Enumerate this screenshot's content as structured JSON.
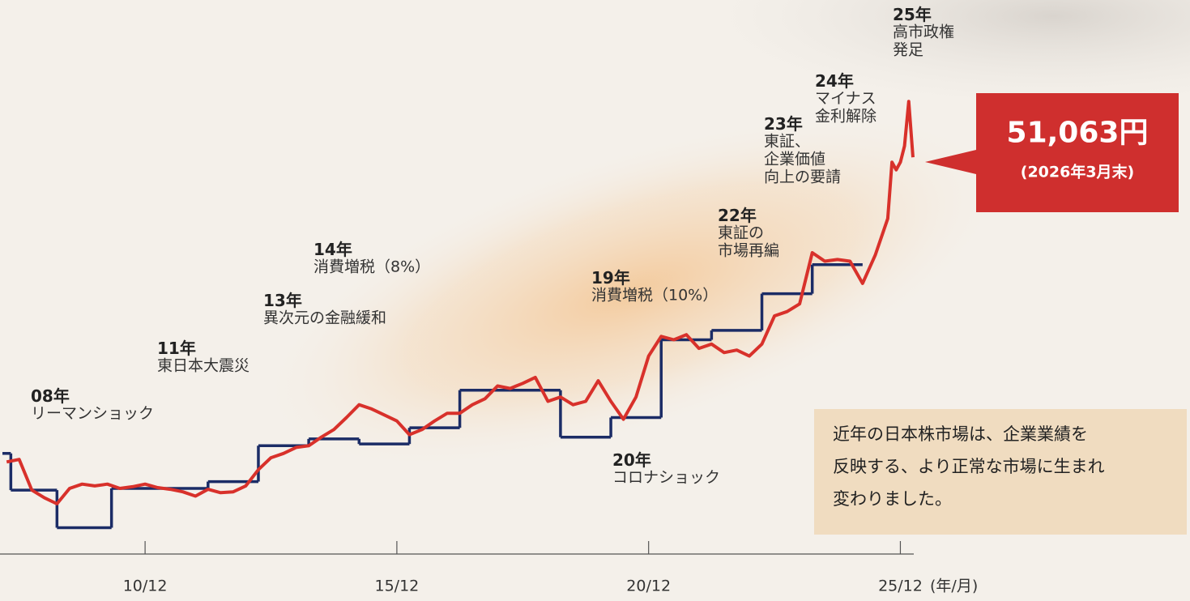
{
  "chart_data": {
    "type": "line",
    "xlim": [
      "08/02",
      "26/03"
    ],
    "xticks": [
      "10/12",
      "15/12",
      "20/12",
      "25/12"
    ],
    "x_axis_unit": "(年/月)",
    "ylim": [
      5000,
      60000
    ],
    "series": [
      {
        "color": "#d8312b",
        "x": [
          "08/03",
          "08/06",
          "08/09",
          "08/12",
          "09/03",
          "09/06",
          "09/09",
          "09/12",
          "10/03",
          "10/06",
          "10/09",
          "10/12",
          "11/03",
          "11/06",
          "11/09",
          "11/12",
          "12/03",
          "12/06",
          "12/09",
          "12/12",
          "13/03",
          "13/06",
          "13/09",
          "13/12",
          "14/03",
          "14/06",
          "14/09",
          "14/12",
          "15/03",
          "15/06",
          "15/09",
          "15/12",
          "16/03",
          "16/06",
          "16/09",
          "16/12",
          "17/03",
          "17/06",
          "17/09",
          "17/12",
          "18/03",
          "18/06",
          "18/09",
          "18/12",
          "19/03",
          "19/06",
          "19/09",
          "19/12",
          "20/03",
          "20/06",
          "20/09",
          "20/12",
          "21/03",
          "21/06",
          "21/09",
          "21/12",
          "22/03",
          "22/06",
          "22/09",
          "22/12",
          "23/03",
          "23/06",
          "23/09",
          "23/12",
          "24/03",
          "24/06",
          "24/09",
          "24/12",
          "25/03",
          "25/06",
          "25/09",
          "25/10",
          "25/11",
          "25/12",
          "26/01",
          "26/02",
          "26/03"
        ],
        "values": [
          15400,
          15700,
          12100,
          11200,
          10500,
          12300,
          12800,
          12600,
          12800,
          12300,
          12500,
          12800,
          12400,
          12200,
          11900,
          11400,
          12200,
          11800,
          11900,
          12600,
          14500,
          15900,
          16400,
          17100,
          17300,
          18300,
          19200,
          20600,
          22100,
          21600,
          20900,
          20200,
          18600,
          19200,
          20200,
          21100,
          21100,
          22100,
          22800,
          24300,
          24000,
          24600,
          25300,
          22500,
          23000,
          22100,
          22500,
          24900,
          22500,
          20400,
          23000,
          27800,
          30100,
          29700,
          30300,
          28700,
          29200,
          28200,
          28500,
          27800,
          29200,
          32500,
          33000,
          33900,
          39900,
          38900,
          39100,
          38900,
          36300,
          39600,
          43900,
          50500,
          49600,
          50500,
          52400,
          57600,
          51063
        ],
        "value_labels": [
          null,
          null,
          null,
          null,
          null,
          null,
          null,
          null,
          null,
          null,
          null,
          null,
          null,
          null,
          null,
          null,
          null,
          null,
          null,
          null,
          null,
          null,
          null,
          null,
          null,
          null,
          null,
          null,
          null,
          null,
          null,
          null,
          null,
          null,
          null,
          null,
          null,
          null,
          null,
          null,
          null,
          null,
          null,
          null,
          null,
          null,
          null,
          null,
          null,
          null,
          null,
          null,
          null,
          null,
          null,
          null,
          null,
          null,
          null,
          null,
          null,
          null,
          null,
          null,
          null,
          null,
          null,
          null,
          null,
          null,
          null,
          null,
          null,
          null,
          null,
          null,
          "51,063円"
        ],
        "value_note": "(2026年3月末)"
      },
      {
        "color": "#1b2c66",
        "step": true,
        "x": [
          "08/02",
          "08/04",
          "09/03",
          "10/04",
          "12/03",
          "13/03",
          "14/03",
          "15/03",
          "16/03",
          "17/03",
          "19/03",
          "20/03",
          "21/03",
          "22/03",
          "23/03",
          "24/03",
          "25/03"
        ],
        "values": [
          16400,
          12100,
          7700,
          12300,
          13100,
          17300,
          18100,
          17500,
          19400,
          23800,
          18300,
          20600,
          29700,
          30800,
          35100,
          38500,
          38500
        ]
      }
    ],
    "annotations": [
      {
        "year": "25年",
        "lines": [
          "高市政権",
          "発足"
        ]
      },
      {
        "year": "24年",
        "lines": [
          "マイナス",
          "金利解除"
        ]
      },
      {
        "year": "23年",
        "lines": [
          "東証、",
          "企業価値",
          "向上の要請"
        ]
      },
      {
        "year": "22年",
        "lines": [
          "東証の",
          "市場再編"
        ]
      },
      {
        "year": "19年",
        "lines": [
          "消費増税（10%）"
        ]
      },
      {
        "year": "14年",
        "lines": [
          "消費増税（8%）"
        ]
      },
      {
        "year": "13年",
        "lines": [
          "異次元の金融緩和"
        ]
      },
      {
        "year": "11年",
        "lines": [
          "東日本大震災"
        ]
      },
      {
        "year": "08年",
        "lines": [
          "リーマンショック"
        ]
      },
      {
        "year": "20年",
        "lines": [
          "コロナショック"
        ]
      }
    ],
    "note": [
      "近年の日本株市場は、企業業績を",
      "反映する、より正常な市場に生まれ",
      "変わりました。"
    ]
  }
}
